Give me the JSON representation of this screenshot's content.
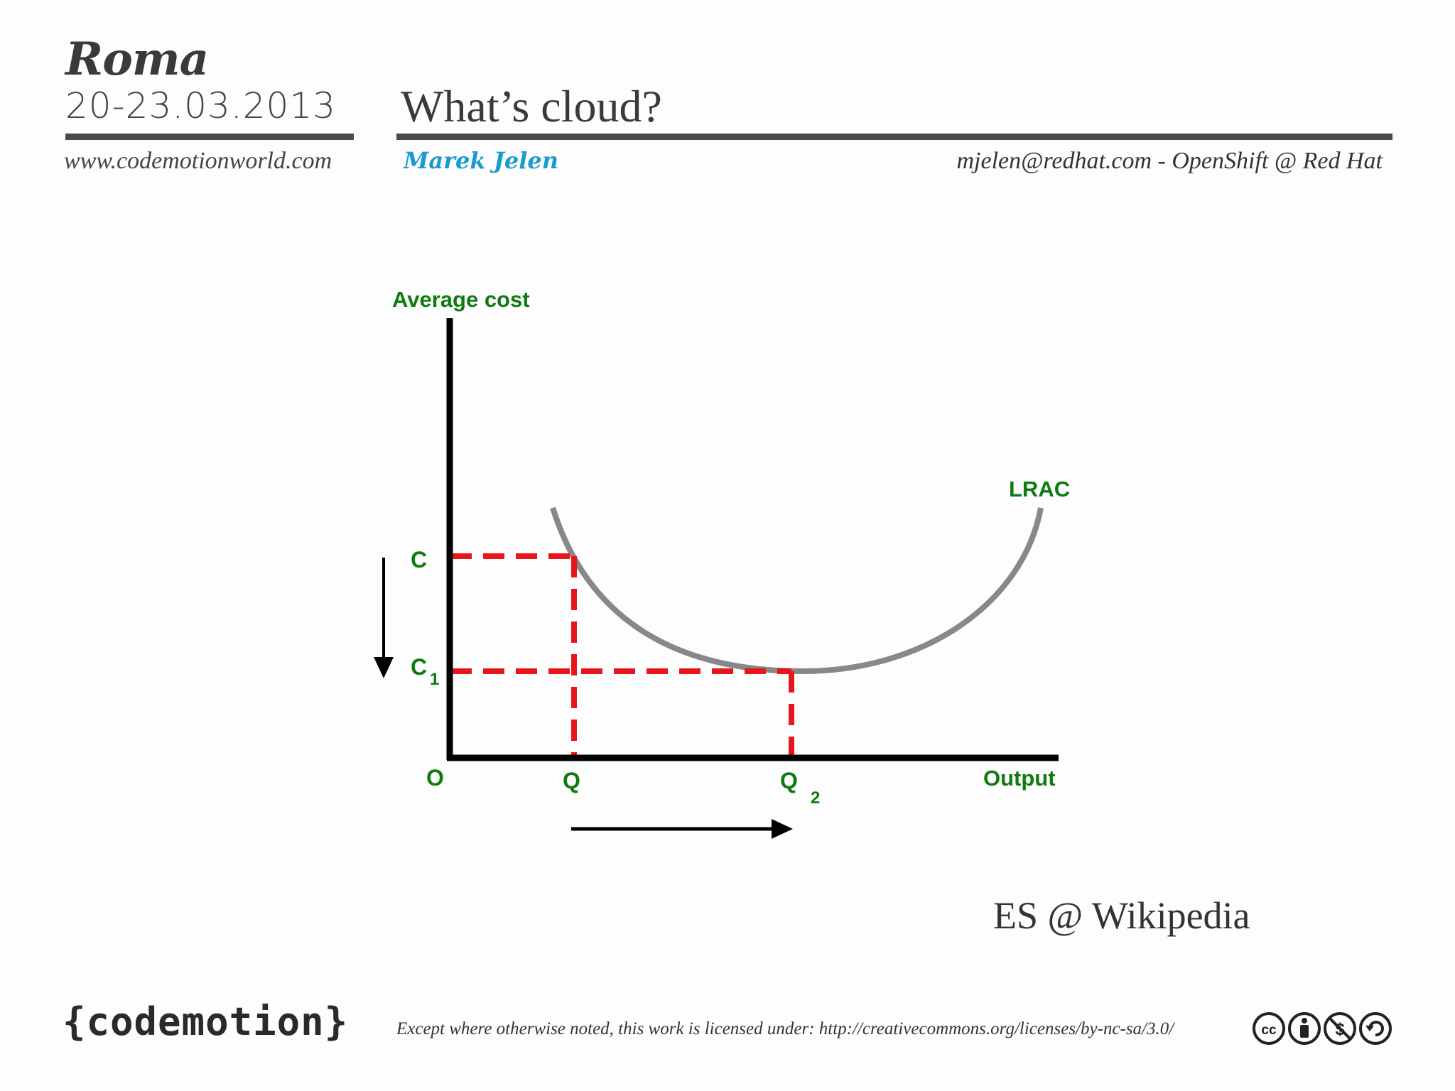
{
  "header": {
    "city": "Roma",
    "dates": "20-23.03.2013",
    "title": "What’s cloud?",
    "website": "www.codemotionworld.com",
    "author": "Marek Jelen",
    "contact": "mjelen@redhat.com - OpenShift @ Red Hat"
  },
  "figure": {
    "y_axis_label": "Average cost",
    "x_axis_label": "Output",
    "origin_label": "O",
    "cost_high_label": "C",
    "cost_low_label": "C",
    "cost_low_sub": "1",
    "qty_low_label": "Q",
    "qty_high_label": "Q",
    "qty_high_sub": "2",
    "curve_label": "LRAC",
    "colors": {
      "label_green": "#0f7a0f",
      "dashed_red": "#e8151a",
      "curve_gray": "#888888",
      "axis_black": "#000000"
    }
  },
  "source": "ES @ Wikipedia",
  "footer": {
    "logo": "{codemotion}",
    "license": "Except where otherwise noted, this work is licensed under: http://creativecommons.org/licenses/by-nc-sa/3.0/",
    "license_icons": [
      "cc-icon",
      "by-icon",
      "nc-icon",
      "sa-icon"
    ]
  }
}
